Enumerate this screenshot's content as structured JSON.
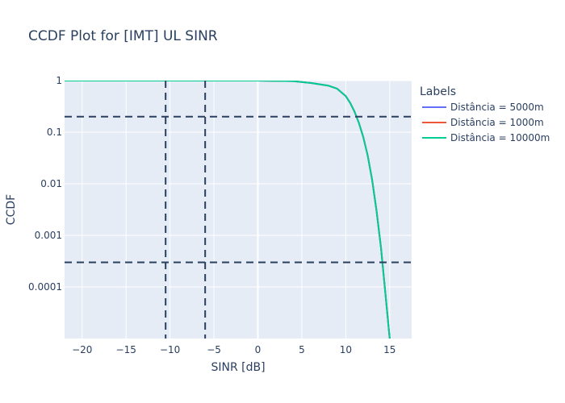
{
  "chart_data": {
    "type": "line",
    "title": "CCDF Plot for [IMT] UL SINR",
    "xlabel": "SINR [dB]",
    "ylabel": "CCDF",
    "xlim": [
      -22,
      17.5
    ],
    "ylim_log10": [
      -5,
      0
    ],
    "y_scale": "log",
    "x_ticks": [
      -20,
      -15,
      -10,
      -5,
      0,
      5,
      10,
      15
    ],
    "x_tick_labels": [
      "−20",
      "−15",
      "−10",
      "−5",
      "0",
      "5",
      "10",
      "15"
    ],
    "y_ticks": [
      0.0001,
      0.001,
      0.01,
      0.1,
      1
    ],
    "y_tick_labels": [
      "0.0001",
      "0.001",
      "0.01",
      "0.1",
      "1"
    ],
    "grid": true,
    "legend_title": "Labels",
    "legend_position": "right",
    "series": [
      {
        "name": "Distância = 5000m",
        "color": "#636efa",
        "x": [
          -22,
          -10,
          0,
          4,
          6,
          8,
          9,
          10,
          10.5,
          11,
          11.5,
          12,
          12.5,
          13,
          13.5,
          14,
          14.5,
          15
        ],
        "y": [
          1,
          1,
          1,
          0.98,
          0.9,
          0.8,
          0.7,
          0.5,
          0.37,
          0.25,
          0.15,
          0.08,
          0.035,
          0.012,
          0.003,
          0.0006,
          8e-05,
          1e-05
        ]
      },
      {
        "name": "Distância = 1000m",
        "color": "#ef553b",
        "x": [
          -22,
          -10,
          0,
          4,
          6,
          8,
          9,
          10,
          10.5,
          11,
          11.5,
          12,
          12.5,
          13,
          13.5,
          14,
          14.5,
          15
        ],
        "y": [
          1,
          1,
          1,
          0.98,
          0.9,
          0.8,
          0.7,
          0.5,
          0.37,
          0.25,
          0.15,
          0.08,
          0.035,
          0.012,
          0.003,
          0.0006,
          8e-05,
          1e-05
        ]
      },
      {
        "name": "Distância = 10000m",
        "color": "#00cc96",
        "x": [
          -22,
          -10,
          0,
          4,
          6,
          8,
          9,
          10,
          10.5,
          11,
          11.5,
          12,
          12.5,
          13,
          13.5,
          14,
          14.5,
          15
        ],
        "y": [
          1,
          1,
          1,
          0.98,
          0.9,
          0.8,
          0.7,
          0.5,
          0.37,
          0.25,
          0.15,
          0.08,
          0.035,
          0.012,
          0.003,
          0.0006,
          8e-05,
          1e-05
        ]
      }
    ],
    "reference_lines": {
      "color": "#2a3f5f",
      "dash": "dashed",
      "vertical_x": [
        -10.5,
        -6
      ],
      "horizontal_y": [
        0.2,
        0.0003
      ]
    },
    "colors": {
      "plot_background": "#e5ecf6",
      "grid": "#ffffff",
      "text": "#2a3f5f"
    }
  }
}
